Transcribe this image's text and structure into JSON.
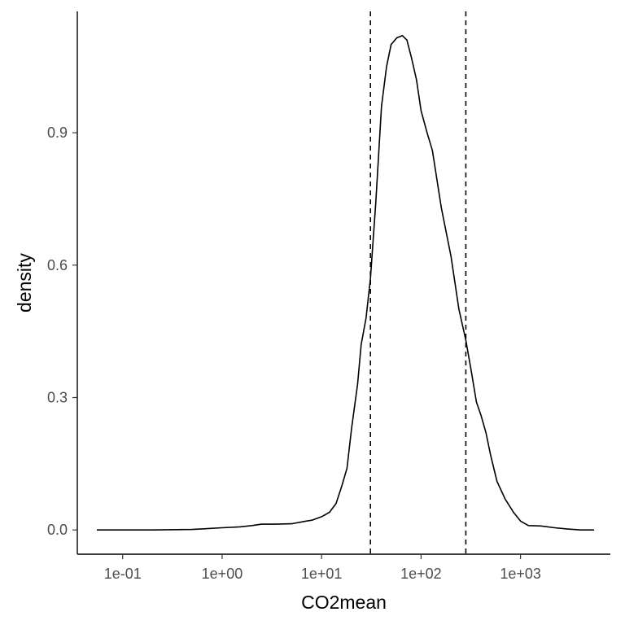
{
  "chart_data": {
    "type": "line",
    "title": "",
    "xlabel": "CO2mean",
    "ylabel": "density",
    "x_scale": "log10",
    "xlim": [
      0.035,
      8000
    ],
    "ylim": [
      -0.055,
      1.175
    ],
    "x_ticks": [
      {
        "value": 0.1,
        "label": "1e-01"
      },
      {
        "value": 1,
        "label": "1e+00"
      },
      {
        "value": 10,
        "label": "1e+01"
      },
      {
        "value": 100,
        "label": "1e+02"
      },
      {
        "value": 1000,
        "label": "1e+03"
      }
    ],
    "y_ticks": [
      {
        "value": 0.0,
        "label": "0.0"
      },
      {
        "value": 0.3,
        "label": "0.3"
      },
      {
        "value": 0.6,
        "label": "0.6"
      },
      {
        "value": 0.9,
        "label": "0.9"
      }
    ],
    "grid": false,
    "reference_lines": [
      {
        "x": 31,
        "style": "dashed"
      },
      {
        "x": 282,
        "style": "dashed"
      }
    ],
    "series": [
      {
        "color": "#000000",
        "x": [
          0.055,
          0.1,
          0.2,
          0.5,
          1.0,
          1.5,
          2.0,
          2.5,
          3.5,
          5,
          7,
          8,
          10,
          12,
          14,
          16,
          18,
          20,
          23,
          25,
          28,
          31,
          35,
          40,
          45,
          50,
          57,
          65,
          72,
          80,
          90,
          100,
          115,
          130,
          160,
          200,
          240,
          282,
          320,
          360,
          400,
          450,
          500,
          580,
          700,
          850,
          1000,
          1200,
          1600,
          2200,
          3000,
          4000,
          5500
        ],
        "y": [
          0.0,
          0.0,
          0.0,
          0.001,
          0.005,
          0.007,
          0.01,
          0.013,
          0.013,
          0.014,
          0.02,
          0.022,
          0.03,
          0.04,
          0.06,
          0.1,
          0.14,
          0.23,
          0.33,
          0.42,
          0.48,
          0.57,
          0.74,
          0.96,
          1.05,
          1.1,
          1.115,
          1.12,
          1.11,
          1.07,
          1.02,
          0.95,
          0.9,
          0.86,
          0.73,
          0.62,
          0.5,
          0.43,
          0.36,
          0.29,
          0.26,
          0.22,
          0.17,
          0.11,
          0.07,
          0.04,
          0.02,
          0.01,
          0.009,
          0.005,
          0.002,
          0.0,
          0.0
        ]
      }
    ]
  }
}
